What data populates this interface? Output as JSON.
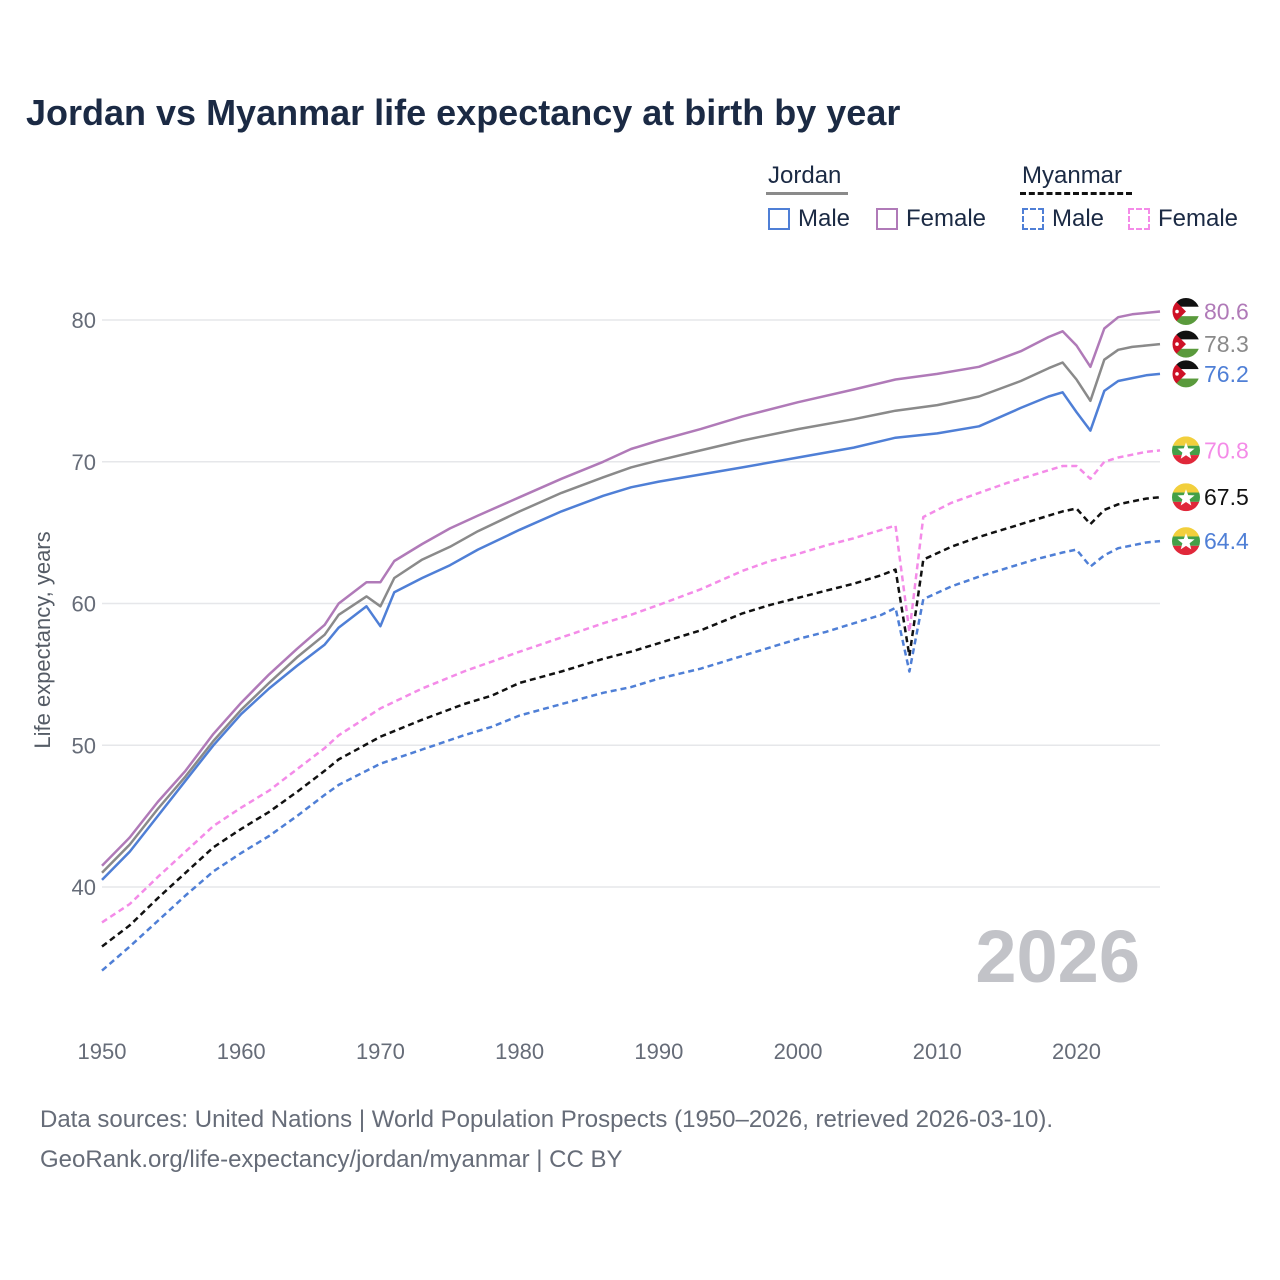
{
  "title": "Jordan vs Myanmar life expectancy at birth by year",
  "legend": {
    "groups": [
      {
        "country": "Jordan",
        "line_color": "#8a8a8a",
        "line_style": "solid",
        "items": [
          {
            "label": "Male",
            "color": "#4f7fd6",
            "style": "solid"
          },
          {
            "label": "Female",
            "color": "#b07ab8",
            "style": "solid"
          }
        ]
      },
      {
        "country": "Myanmar",
        "line_color": "#111111",
        "line_style": "dashed",
        "items": [
          {
            "label": "Male",
            "color": "#4f7fd6",
            "style": "dashed"
          },
          {
            "label": "Female",
            "color": "#f48be8",
            "style": "dashed"
          }
        ]
      }
    ]
  },
  "footer": {
    "line1": "Data sources: United Nations | World Population Prospects (1950–2026, retrieved 2026-03-10).",
    "line2": "GeoRank.org/life-expectancy/jordan/myanmar | CC BY"
  },
  "chart_data": {
    "type": "line",
    "title": "Jordan vs Myanmar life expectancy at birth by year",
    "xlabel": "",
    "ylabel": "Life expectancy, years",
    "xlim": [
      1950,
      2026
    ],
    "ylim": [
      34,
      83
    ],
    "x_ticks": [
      1950,
      1960,
      1970,
      1980,
      1990,
      2000,
      2010,
      2020
    ],
    "y_ticks": [
      40,
      50,
      60,
      70,
      80
    ],
    "grid": true,
    "current_year_label": "2026",
    "series": [
      {
        "name": "Jordan Female",
        "country": "Jordan",
        "color": "#b07ab8",
        "dash": "solid",
        "flag": "jordan",
        "end_label": "80.6",
        "points": [
          [
            1950,
            41.5
          ],
          [
            1952,
            43.5
          ],
          [
            1954,
            46.0
          ],
          [
            1956,
            48.2
          ],
          [
            1958,
            50.8
          ],
          [
            1960,
            53.0
          ],
          [
            1962,
            55.0
          ],
          [
            1964,
            56.8
          ],
          [
            1966,
            58.5
          ],
          [
            1967,
            60.0
          ],
          [
            1969,
            61.5
          ],
          [
            1970,
            61.5
          ],
          [
            1971,
            63.0
          ],
          [
            1973,
            64.2
          ],
          [
            1975,
            65.3
          ],
          [
            1977,
            66.2
          ],
          [
            1980,
            67.5
          ],
          [
            1983,
            68.8
          ],
          [
            1986,
            70.0
          ],
          [
            1988,
            70.9
          ],
          [
            1990,
            71.5
          ],
          [
            1993,
            72.3
          ],
          [
            1996,
            73.2
          ],
          [
            2000,
            74.2
          ],
          [
            2004,
            75.1
          ],
          [
            2007,
            75.8
          ],
          [
            2010,
            76.2
          ],
          [
            2013,
            76.7
          ],
          [
            2016,
            77.8
          ],
          [
            2018,
            78.8
          ],
          [
            2019,
            79.2
          ],
          [
            2020,
            78.2
          ],
          [
            2021,
            76.7
          ],
          [
            2022,
            79.4
          ],
          [
            2023,
            80.2
          ],
          [
            2024,
            80.4
          ],
          [
            2025,
            80.5
          ],
          [
            2026,
            80.6
          ]
        ]
      },
      {
        "name": "Jordan Total",
        "country": "Jordan",
        "color": "#8a8a8a",
        "dash": "solid",
        "flag": "jordan",
        "end_label": "78.3",
        "points": [
          [
            1950,
            41.0
          ],
          [
            1952,
            43.0
          ],
          [
            1954,
            45.5
          ],
          [
            1956,
            47.8
          ],
          [
            1958,
            50.3
          ],
          [
            1960,
            52.5
          ],
          [
            1962,
            54.4
          ],
          [
            1964,
            56.2
          ],
          [
            1966,
            57.8
          ],
          [
            1967,
            59.2
          ],
          [
            1969,
            60.5
          ],
          [
            1970,
            59.8
          ],
          [
            1971,
            61.8
          ],
          [
            1973,
            63.1
          ],
          [
            1975,
            64.0
          ],
          [
            1977,
            65.1
          ],
          [
            1980,
            66.5
          ],
          [
            1983,
            67.8
          ],
          [
            1986,
            68.9
          ],
          [
            1988,
            69.6
          ],
          [
            1990,
            70.1
          ],
          [
            1993,
            70.8
          ],
          [
            1996,
            71.5
          ],
          [
            2000,
            72.3
          ],
          [
            2004,
            73.0
          ],
          [
            2007,
            73.6
          ],
          [
            2010,
            74.0
          ],
          [
            2013,
            74.6
          ],
          [
            2016,
            75.7
          ],
          [
            2018,
            76.6
          ],
          [
            2019,
            77.0
          ],
          [
            2020,
            75.8
          ],
          [
            2021,
            74.3
          ],
          [
            2022,
            77.2
          ],
          [
            2023,
            77.9
          ],
          [
            2024,
            78.1
          ],
          [
            2025,
            78.2
          ],
          [
            2026,
            78.3
          ]
        ]
      },
      {
        "name": "Jordan Male",
        "country": "Jordan",
        "color": "#4f7fd6",
        "dash": "solid",
        "flag": "jordan",
        "end_label": "76.2",
        "points": [
          [
            1950,
            40.5
          ],
          [
            1952,
            42.5
          ],
          [
            1954,
            45.0
          ],
          [
            1956,
            47.5
          ],
          [
            1958,
            50.0
          ],
          [
            1960,
            52.2
          ],
          [
            1962,
            54.0
          ],
          [
            1964,
            55.6
          ],
          [
            1966,
            57.1
          ],
          [
            1967,
            58.3
          ],
          [
            1969,
            59.8
          ],
          [
            1970,
            58.4
          ],
          [
            1971,
            60.8
          ],
          [
            1973,
            61.8
          ],
          [
            1975,
            62.7
          ],
          [
            1977,
            63.8
          ],
          [
            1980,
            65.2
          ],
          [
            1983,
            66.5
          ],
          [
            1986,
            67.6
          ],
          [
            1988,
            68.2
          ],
          [
            1990,
            68.6
          ],
          [
            1993,
            69.1
          ],
          [
            1996,
            69.6
          ],
          [
            2000,
            70.3
          ],
          [
            2004,
            71.0
          ],
          [
            2007,
            71.7
          ],
          [
            2010,
            72.0
          ],
          [
            2013,
            72.5
          ],
          [
            2016,
            73.8
          ],
          [
            2018,
            74.6
          ],
          [
            2019,
            74.9
          ],
          [
            2020,
            73.5
          ],
          [
            2021,
            72.2
          ],
          [
            2022,
            75.0
          ],
          [
            2023,
            75.7
          ],
          [
            2024,
            75.9
          ],
          [
            2025,
            76.1
          ],
          [
            2026,
            76.2
          ]
        ]
      },
      {
        "name": "Myanmar Female",
        "country": "Myanmar",
        "color": "#f48be8",
        "dash": "dashed",
        "flag": "myanmar",
        "end_label": "70.8",
        "points": [
          [
            1950,
            37.5
          ],
          [
            1952,
            38.8
          ],
          [
            1954,
            40.7
          ],
          [
            1956,
            42.5
          ],
          [
            1958,
            44.3
          ],
          [
            1960,
            45.6
          ],
          [
            1962,
            46.8
          ],
          [
            1964,
            48.3
          ],
          [
            1966,
            49.8
          ],
          [
            1967,
            50.7
          ],
          [
            1970,
            52.6
          ],
          [
            1973,
            54.0
          ],
          [
            1976,
            55.2
          ],
          [
            1980,
            56.6
          ],
          [
            1983,
            57.6
          ],
          [
            1986,
            58.6
          ],
          [
            1988,
            59.2
          ],
          [
            1990,
            59.9
          ],
          [
            1993,
            61.0
          ],
          [
            1996,
            62.3
          ],
          [
            1998,
            63.0
          ],
          [
            2000,
            63.5
          ],
          [
            2002,
            64.1
          ],
          [
            2004,
            64.6
          ],
          [
            2006,
            65.2
          ],
          [
            2007,
            65.5
          ],
          [
            2008,
            58.0
          ],
          [
            2009,
            66.1
          ],
          [
            2011,
            67.1
          ],
          [
            2013,
            67.8
          ],
          [
            2015,
            68.5
          ],
          [
            2017,
            69.1
          ],
          [
            2019,
            69.7
          ],
          [
            2020,
            69.7
          ],
          [
            2021,
            68.8
          ],
          [
            2022,
            70.0
          ],
          [
            2023,
            70.3
          ],
          [
            2024,
            70.5
          ],
          [
            2025,
            70.7
          ],
          [
            2026,
            70.8
          ]
        ]
      },
      {
        "name": "Myanmar Total",
        "country": "Myanmar",
        "color": "#111111",
        "dash": "dashed",
        "flag": "myanmar",
        "end_label": "67.5",
        "points": [
          [
            1950,
            35.8
          ],
          [
            1952,
            37.3
          ],
          [
            1954,
            39.2
          ],
          [
            1956,
            41.0
          ],
          [
            1958,
            42.8
          ],
          [
            1960,
            44.1
          ],
          [
            1962,
            45.3
          ],
          [
            1964,
            46.7
          ],
          [
            1966,
            48.2
          ],
          [
            1967,
            49.0
          ],
          [
            1970,
            50.6
          ],
          [
            1973,
            51.8
          ],
          [
            1976,
            52.9
          ],
          [
            1978,
            53.5
          ],
          [
            1980,
            54.4
          ],
          [
            1983,
            55.2
          ],
          [
            1986,
            56.1
          ],
          [
            1988,
            56.6
          ],
          [
            1990,
            57.2
          ],
          [
            1993,
            58.1
          ],
          [
            1996,
            59.3
          ],
          [
            1998,
            59.9
          ],
          [
            2000,
            60.4
          ],
          [
            2002,
            60.9
          ],
          [
            2004,
            61.4
          ],
          [
            2006,
            62.0
          ],
          [
            2007,
            62.4
          ],
          [
            2008,
            56.3
          ],
          [
            2009,
            63.1
          ],
          [
            2011,
            64.0
          ],
          [
            2013,
            64.7
          ],
          [
            2015,
            65.3
          ],
          [
            2017,
            65.9
          ],
          [
            2019,
            66.5
          ],
          [
            2020,
            66.7
          ],
          [
            2021,
            65.6
          ],
          [
            2022,
            66.6
          ],
          [
            2023,
            67.0
          ],
          [
            2024,
            67.2
          ],
          [
            2025,
            67.4
          ],
          [
            2026,
            67.5
          ]
        ]
      },
      {
        "name": "Myanmar Male",
        "country": "Myanmar",
        "color": "#4f7fd6",
        "dash": "dashed",
        "flag": "myanmar",
        "end_label": "64.4",
        "points": [
          [
            1950,
            34.1
          ],
          [
            1952,
            35.8
          ],
          [
            1954,
            37.6
          ],
          [
            1956,
            39.4
          ],
          [
            1958,
            41.1
          ],
          [
            1960,
            42.4
          ],
          [
            1962,
            43.6
          ],
          [
            1964,
            45.0
          ],
          [
            1966,
            46.5
          ],
          [
            1967,
            47.2
          ],
          [
            1970,
            48.7
          ],
          [
            1973,
            49.7
          ],
          [
            1976,
            50.7
          ],
          [
            1978,
            51.3
          ],
          [
            1980,
            52.1
          ],
          [
            1983,
            52.9
          ],
          [
            1986,
            53.7
          ],
          [
            1988,
            54.1
          ],
          [
            1990,
            54.7
          ],
          [
            1993,
            55.4
          ],
          [
            1996,
            56.3
          ],
          [
            1998,
            56.9
          ],
          [
            2000,
            57.5
          ],
          [
            2002,
            58.0
          ],
          [
            2004,
            58.6
          ],
          [
            2006,
            59.2
          ],
          [
            2007,
            59.7
          ],
          [
            2008,
            55.2
          ],
          [
            2009,
            60.3
          ],
          [
            2011,
            61.2
          ],
          [
            2013,
            61.9
          ],
          [
            2015,
            62.5
          ],
          [
            2017,
            63.1
          ],
          [
            2019,
            63.6
          ],
          [
            2020,
            63.8
          ],
          [
            2021,
            62.6
          ],
          [
            2022,
            63.4
          ],
          [
            2023,
            63.9
          ],
          [
            2024,
            64.1
          ],
          [
            2025,
            64.3
          ],
          [
            2026,
            64.4
          ]
        ]
      }
    ]
  }
}
